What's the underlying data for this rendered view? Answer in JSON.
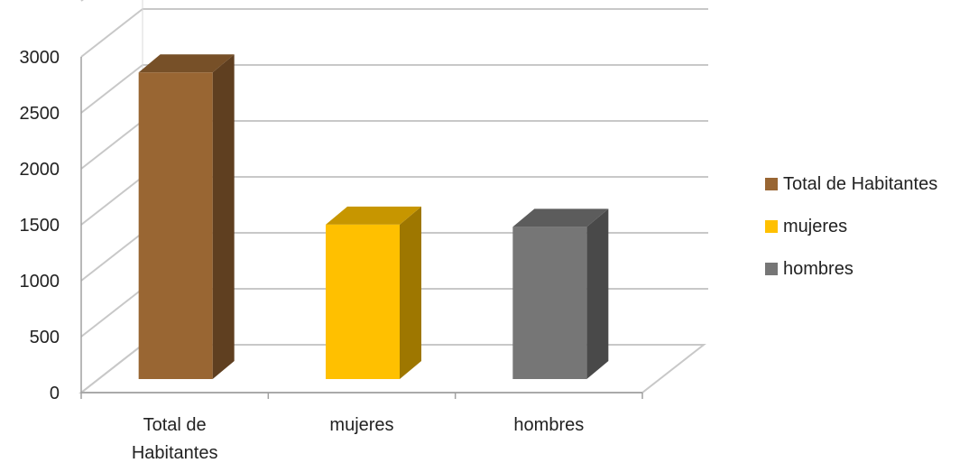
{
  "chart_data": {
    "type": "bar",
    "categories": [
      {
        "line1": "Total de",
        "line2": "Habitantes"
      },
      {
        "line1": "mujeres",
        "line2": ""
      },
      {
        "line1": "hombres",
        "line2": ""
      }
    ],
    "series": [
      {
        "name": "Total de Habitantes",
        "values": [
          2740,
          null,
          null
        ],
        "color": "#996633"
      },
      {
        "name": "mujeres",
        "values": [
          null,
          1380,
          null
        ],
        "color": "#FFC000"
      },
      {
        "name": "hombres",
        "values": [
          null,
          null,
          1360
        ],
        "color": "#767676"
      }
    ],
    "yticks": [
      "0",
      "500",
      "1000",
      "1500",
      "2000",
      "2500",
      "3000"
    ],
    "ylim": [
      0,
      3000
    ],
    "style": "3d-bar",
    "grid": true,
    "legend_position": "right"
  }
}
